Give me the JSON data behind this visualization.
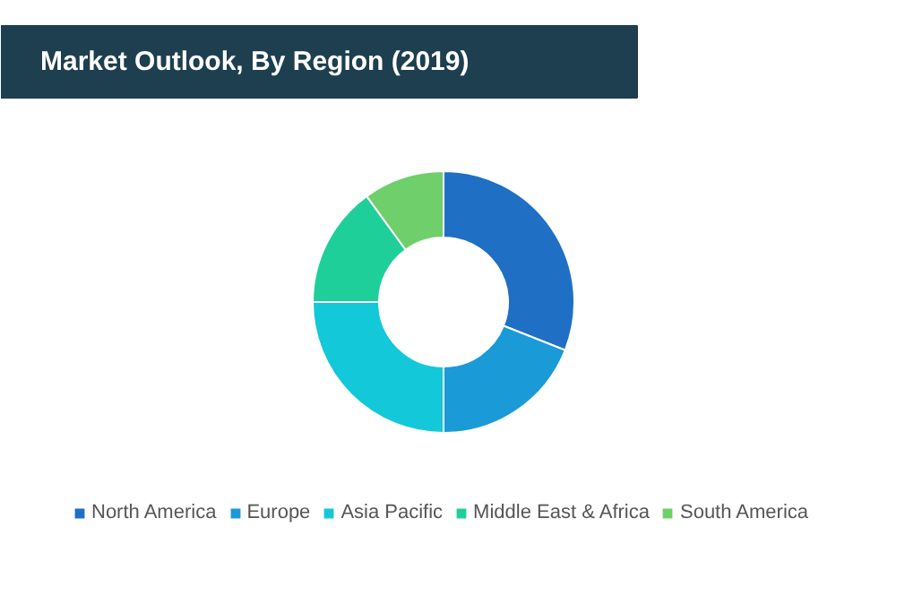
{
  "chart_data": {
    "type": "donut",
    "title": "Market Outlook, By Region (2019)",
    "categories": [
      "North America",
      "Europe",
      "Asia Pacific",
      "Middle East & Africa",
      "South America"
    ],
    "values": [
      31,
      19,
      25,
      15,
      10
    ],
    "colors": [
      "#1f6fc5",
      "#1a9ad6",
      "#13c8d8",
      "#1fcf9a",
      "#6fcf6a"
    ],
    "legend": "bottom"
  }
}
